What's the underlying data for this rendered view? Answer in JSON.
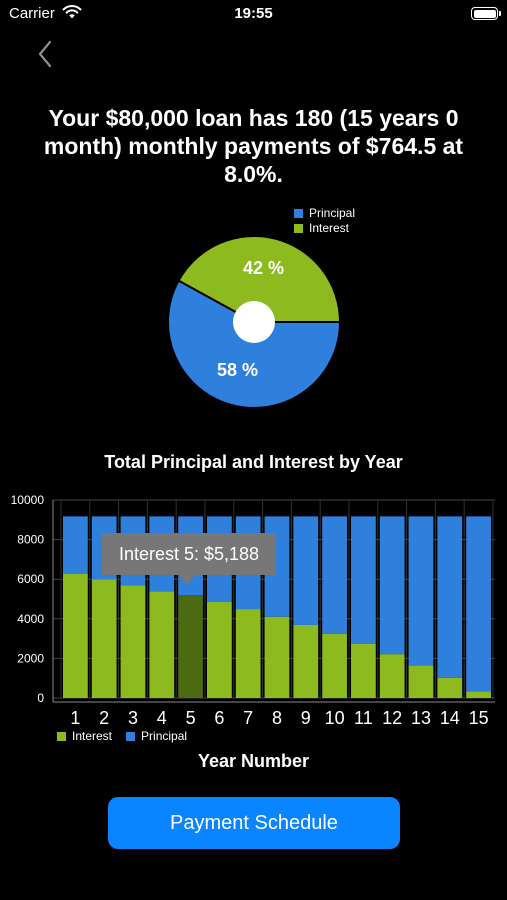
{
  "status_bar": {
    "carrier": "Carrier",
    "time": "19:55"
  },
  "nav": {
    "back_icon": "chevron-left-icon"
  },
  "summary": {
    "text": "Your $80,000 loan has 180 (15 years 0 month) monthly payments of $764.5 at 8.0%."
  },
  "colors": {
    "principal": "#2f80dd",
    "interest": "#8dbb1f",
    "highlight": "#4b6a12",
    "button": "#0a84ff",
    "tooltip": "#777777"
  },
  "pie": {
    "legend": [
      "Principal",
      "Interest"
    ],
    "principal_label": "58 %",
    "interest_label": "42 %"
  },
  "bar_chart": {
    "title": "Total Principal and Interest by Year",
    "xlabel": "Year Number",
    "legend": [
      "Interest",
      "Principal"
    ],
    "tooltip": "Interest 5: $5,188"
  },
  "chart_data": [
    {
      "type": "pie",
      "categories": [
        "Principal",
        "Interest"
      ],
      "values": [
        58,
        42
      ]
    },
    {
      "type": "bar",
      "stacked": true,
      "title": "Total Principal and Interest by Year",
      "xlabel": "Year Number",
      "ylabel": "",
      "ylim": [
        0,
        10000
      ],
      "yticks": [
        0,
        2000,
        4000,
        6000,
        8000,
        10000
      ],
      "categories": [
        "1",
        "2",
        "3",
        "4",
        "5",
        "6",
        "7",
        "8",
        "9",
        "10",
        "11",
        "12",
        "13",
        "14",
        "15"
      ],
      "series": [
        {
          "name": "Interest",
          "values": [
            6262,
            5990,
            5695,
            5376,
            5188,
            4847,
            4491,
            4105,
            3688,
            3235,
            2745,
            2214,
            1638,
            1015,
            340
          ]
        },
        {
          "name": "Principal",
          "values": [
            2912,
            3184,
            3479,
            3798,
            3986,
            4327,
            4683,
            5069,
            5486,
            5939,
            6429,
            6960,
            7536,
            8159,
            8834
          ]
        }
      ],
      "highlight": {
        "series": "Interest",
        "category": "5"
      },
      "grid": true,
      "legend_position": "bottom-left"
    }
  ],
  "button": {
    "label": "Payment Schedule"
  }
}
